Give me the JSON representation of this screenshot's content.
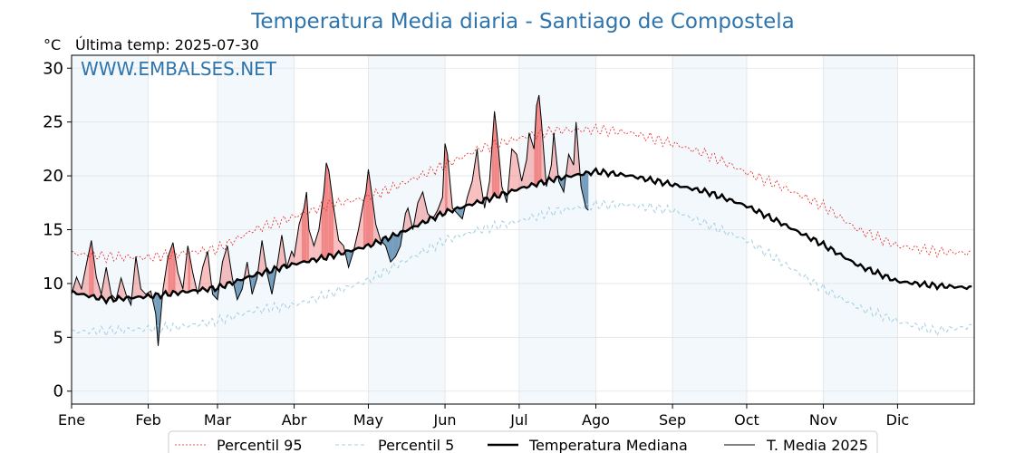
{
  "chart_data": {
    "type": "line",
    "title": "Temperatura Media diaria - Santiago de Compostela",
    "unit": "°C",
    "subtitle": "Última temp: 2025-07-30",
    "watermark": "WWW.EMBALSES.NET",
    "ylim": [
      -1.2,
      31.2
    ],
    "yticks": [
      0,
      5,
      10,
      15,
      20,
      25,
      30
    ],
    "months": [
      "Ene",
      "Feb",
      "Mar",
      "Abr",
      "May",
      "Jun",
      "Jul",
      "Ago",
      "Sep",
      "Oct",
      "Nov",
      "Dic"
    ],
    "month_start_days": [
      1,
      32,
      60,
      91,
      121,
      152,
      182,
      213,
      244,
      274,
      305,
      335
    ],
    "days_in_year": 365,
    "grid": true,
    "legend_position": "bottom",
    "legend": [
      "Percentil 95",
      "Percentil 5",
      "Temperatura Mediana",
      "T. Media 2025"
    ],
    "colors": {
      "p95": "#e8211d",
      "p5": "#a6d1e3",
      "median": "#000000",
      "actual": "#000000",
      "above": "#f08080",
      "below": "#4a7fa8",
      "title": "#2e75ad",
      "band": "#f3f8fc"
    },
    "series": [
      {
        "name": "Percentil 95",
        "key": "p95",
        "points": [
          [
            1,
            12.8
          ],
          [
            15,
            12.5
          ],
          [
            32,
            12.4
          ],
          [
            46,
            12.8
          ],
          [
            60,
            13.2
          ],
          [
            75,
            15.0
          ],
          [
            91,
            16.2
          ],
          [
            105,
            17.3
          ],
          [
            121,
            18.0
          ],
          [
            135,
            19.3
          ],
          [
            152,
            21.0
          ],
          [
            166,
            22.5
          ],
          [
            182,
            23.5
          ],
          [
            196,
            24.2
          ],
          [
            213,
            24.3
          ],
          [
            227,
            24.0
          ],
          [
            244,
            23.0
          ],
          [
            258,
            22.0
          ],
          [
            274,
            20.3
          ],
          [
            288,
            19.0
          ],
          [
            305,
            17.2
          ],
          [
            319,
            15.0
          ],
          [
            335,
            13.5
          ],
          [
            350,
            13.0
          ],
          [
            365,
            12.8
          ]
        ]
      },
      {
        "name": "Percentil 5",
        "key": "p5",
        "points": [
          [
            1,
            5.5
          ],
          [
            15,
            5.6
          ],
          [
            32,
            5.8
          ],
          [
            46,
            6.0
          ],
          [
            60,
            6.5
          ],
          [
            75,
            7.5
          ],
          [
            91,
            8.0
          ],
          [
            105,
            9.0
          ],
          [
            121,
            10.3
          ],
          [
            135,
            12.0
          ],
          [
            152,
            14.0
          ],
          [
            166,
            15.0
          ],
          [
            182,
            15.8
          ],
          [
            196,
            16.7
          ],
          [
            213,
            17.3
          ],
          [
            227,
            17.3
          ],
          [
            244,
            16.8
          ],
          [
            258,
            15.5
          ],
          [
            274,
            14.0
          ],
          [
            288,
            12.0
          ],
          [
            305,
            9.5
          ],
          [
            319,
            7.8
          ],
          [
            335,
            6.5
          ],
          [
            350,
            5.6
          ],
          [
            365,
            6.0
          ]
        ]
      },
      {
        "name": "Temperatura Mediana",
        "key": "median",
        "points": [
          [
            1,
            9.2
          ],
          [
            15,
            8.5
          ],
          [
            32,
            8.8
          ],
          [
            46,
            9.2
          ],
          [
            60,
            9.6
          ],
          [
            75,
            10.8
          ],
          [
            91,
            11.8
          ],
          [
            105,
            12.5
          ],
          [
            121,
            13.5
          ],
          [
            135,
            14.8
          ],
          [
            152,
            16.6
          ],
          [
            166,
            17.6
          ],
          [
            182,
            18.8
          ],
          [
            196,
            19.7
          ],
          [
            213,
            20.4
          ],
          [
            227,
            20.0
          ],
          [
            244,
            19.2
          ],
          [
            258,
            18.5
          ],
          [
            274,
            17.2
          ],
          [
            288,
            15.6
          ],
          [
            305,
            13.6
          ],
          [
            319,
            11.7
          ],
          [
            335,
            10.2
          ],
          [
            350,
            9.8
          ],
          [
            365,
            9.6
          ]
        ]
      },
      {
        "name": "T. Media 2025",
        "key": "actual",
        "points": [
          [
            1,
            9.0
          ],
          [
            3,
            10.6
          ],
          [
            5,
            9.5
          ],
          [
            7,
            11.8
          ],
          [
            9,
            14.0
          ],
          [
            11,
            10.6
          ],
          [
            13,
            9.0
          ],
          [
            15,
            11.5
          ],
          [
            17,
            9.0
          ],
          [
            19,
            8.5
          ],
          [
            21,
            10.5
          ],
          [
            23,
            9.0
          ],
          [
            25,
            8.0
          ],
          [
            27,
            12.5
          ],
          [
            29,
            9.5
          ],
          [
            31,
            9.0
          ],
          [
            33,
            9.3
          ],
          [
            35,
            7.2
          ],
          [
            36,
            4.2
          ],
          [
            38,
            9.5
          ],
          [
            40,
            12.5
          ],
          [
            42,
            13.8
          ],
          [
            44,
            11.0
          ],
          [
            46,
            9.5
          ],
          [
            48,
            13.5
          ],
          [
            50,
            11.0
          ],
          [
            52,
            9.0
          ],
          [
            54,
            11.5
          ],
          [
            56,
            13.0
          ],
          [
            58,
            9.0
          ],
          [
            60,
            8.5
          ],
          [
            62,
            12.0
          ],
          [
            64,
            13.5
          ],
          [
            66,
            10.5
          ],
          [
            68,
            8.5
          ],
          [
            70,
            9.5
          ],
          [
            72,
            12.0
          ],
          [
            74,
            9.0
          ],
          [
            76,
            10.5
          ],
          [
            78,
            14.0
          ],
          [
            80,
            11.0
          ],
          [
            82,
            9.0
          ],
          [
            84,
            11.5
          ],
          [
            86,
            14.5
          ],
          [
            88,
            11.5
          ],
          [
            90,
            13.0
          ],
          [
            91,
            12.5
          ],
          [
            93,
            15.5
          ],
          [
            95,
            17.0
          ],
          [
            96,
            18.5
          ],
          [
            97,
            15.0
          ],
          [
            99,
            13.5
          ],
          [
            101,
            15.0
          ],
          [
            103,
            18.5
          ],
          [
            104,
            21.2
          ],
          [
            105,
            20.5
          ],
          [
            107,
            17.0
          ],
          [
            109,
            14.0
          ],
          [
            111,
            13.5
          ],
          [
            113,
            11.5
          ],
          [
            115,
            13.0
          ],
          [
            117,
            15.0
          ],
          [
            119,
            17.5
          ],
          [
            120,
            18.5
          ],
          [
            121,
            20.6
          ],
          [
            122,
            19.0
          ],
          [
            124,
            15.5
          ],
          [
            126,
            14.0
          ],
          [
            128,
            13.5
          ],
          [
            130,
            12.0
          ],
          [
            132,
            12.5
          ],
          [
            134,
            13.5
          ],
          [
            136,
            16.5
          ],
          [
            137,
            17.0
          ],
          [
            139,
            15.0
          ],
          [
            141,
            17.5
          ],
          [
            143,
            18.5
          ],
          [
            145,
            16.5
          ],
          [
            147,
            16.0
          ],
          [
            149,
            16.8
          ],
          [
            151,
            18.0
          ],
          [
            152,
            23.0
          ],
          [
            153,
            22.0
          ],
          [
            155,
            17.0
          ],
          [
            157,
            16.5
          ],
          [
            159,
            16.0
          ],
          [
            161,
            18.0
          ],
          [
            163,
            19.5
          ],
          [
            165,
            22.5
          ],
          [
            166,
            20.0
          ],
          [
            168,
            17.0
          ],
          [
            170,
            19.5
          ],
          [
            172,
            26.0
          ],
          [
            173,
            24.0
          ],
          [
            175,
            19.0
          ],
          [
            177,
            17.5
          ],
          [
            179,
            22.5
          ],
          [
            181,
            22.0
          ],
          [
            183,
            19.5
          ],
          [
            185,
            21.5
          ],
          [
            186,
            24.0
          ],
          [
            188,
            22.5
          ],
          [
            189,
            26.5
          ],
          [
            190,
            27.5
          ],
          [
            191,
            25.0
          ],
          [
            193,
            19.0
          ],
          [
            195,
            21.0
          ],
          [
            196,
            24.0
          ],
          [
            198,
            19.5
          ],
          [
            200,
            18.5
          ],
          [
            202,
            22.0
          ],
          [
            204,
            21.0
          ],
          [
            205,
            25.0
          ],
          [
            207,
            19.0
          ],
          [
            209,
            17.0
          ],
          [
            210,
            16.8
          ]
        ]
      }
    ]
  }
}
